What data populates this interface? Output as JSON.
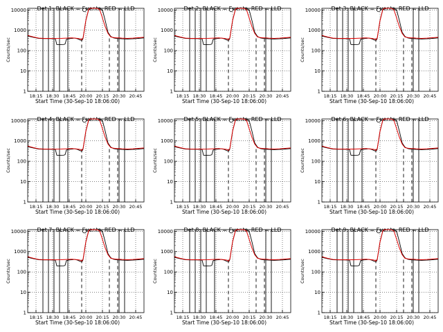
{
  "figure": {
    "xlabel": "Start Time (30-Sep-10 18:06:00)",
    "ylabel": "Counts/sec",
    "colors": {
      "events": "#000000",
      "lld": "#e00000",
      "axis": "#000000",
      "grid": "#000000"
    }
  },
  "chart_data": [
    {
      "title": "Det 1: BLACK = Events, RED = LLD",
      "xlabel": "Start Time (30-Sep-10 18:06:00)"
    },
    {
      "title": "Det 2: BLACK = Events, RED = LLD",
      "xlabel": "Start Time (30-Sep-10 18:06:00)"
    },
    {
      "title": "Det 3: BLACK = Events, RED = LLD",
      "xlabel": "Start Time (30-Sep-10 18:06:00)"
    },
    {
      "title": "Det 4: BLACK = Events, RED = LLD",
      "xlabel": "Start Time (30-Sep-10 18:06:00)"
    },
    {
      "title": "Det 5: BLACK = Events, RED = LLD",
      "xlabel": "Start Time (30-Sep-10 18:06:00)"
    },
    {
      "title": "Det 6: BLACK = Events, RED = LLD",
      "xlabel": "Start Time (30-Sep-10 18:06:00)"
    },
    {
      "title": "Det 7: BLACK = Events, RED = LLD",
      "xlabel": "Start Time (30-Sep-10 18:06:00)"
    },
    {
      "title": "Det 8: BLACK = Events, RED = LLD",
      "xlabel": "Start Time (30-Sep-10 18:06:00)"
    },
    {
      "title": "Det 9: BLACK = Events, RED = LLD",
      "xlabel": "Start Time (30-Sep-10 18:06:00)"
    }
  ],
  "shared": {
    "type": "line",
    "yscale": "log",
    "ylim": [
      1,
      12000
    ],
    "xlim_min": [
      0,
      42
    ],
    "yticks": [
      1,
      10,
      100,
      1000,
      10000
    ],
    "ytick_labels": [
      "1",
      "10",
      "100",
      "1000",
      "10000"
    ],
    "xticks_min": [
      9,
      24,
      39,
      54,
      69,
      84,
      99
    ],
    "xtick_labels": [
      "18:15",
      "18:30",
      "18:45",
      "20:00",
      "20:15",
      "20:30",
      "20:45"
    ],
    "solid_vlines_min": [
      5.5,
      7.5,
      9.5,
      11.5,
      14.5,
      33.0,
      35.0
    ],
    "dashed_vlines_min": [
      19.5,
      29.5,
      32.5
    ],
    "lld_series": {
      "name": "LLD",
      "x_min": [
        0,
        2,
        4,
        6,
        8,
        10,
        12,
        14,
        16,
        18,
        19,
        19.5,
        20,
        21,
        22,
        22.5,
        23,
        24,
        25,
        26,
        27,
        28,
        29,
        30,
        31,
        32,
        33,
        34,
        36,
        38,
        40,
        42
      ],
      "y": [
        560,
        470,
        410,
        400,
        400,
        395,
        400,
        410,
        420,
        400,
        380,
        340,
        420,
        3000,
        10500,
        12000,
        12000,
        12000,
        12000,
        10500,
        4000,
        1500,
        700,
        470,
        440,
        420,
        420,
        410,
        400,
        410,
        430,
        450
      ]
    },
    "events_series": {
      "name": "Events",
      "x_min": [
        0,
        2,
        4,
        6,
        8,
        10,
        10.5,
        11,
        13,
        13.5,
        14,
        15,
        16,
        17,
        18,
        19,
        19.5,
        19.7,
        20,
        21,
        22,
        23,
        24,
        25,
        26,
        27,
        28,
        29,
        30,
        31,
        32,
        33,
        34,
        36,
        38,
        40,
        42
      ],
      "y": [
        520,
        450,
        400,
        390,
        390,
        380,
        200,
        195,
        200,
        210,
        360,
        390,
        400,
        410,
        380,
        330,
        320,
        330,
        400,
        3000,
        10000,
        12000,
        12000,
        12000,
        12000,
        10000,
        3000,
        800,
        500,
        420,
        400,
        390,
        380,
        370,
        380,
        400,
        420
      ]
    },
    "open_circle": {
      "x_min": 20.5,
      "y": 10000
    }
  }
}
